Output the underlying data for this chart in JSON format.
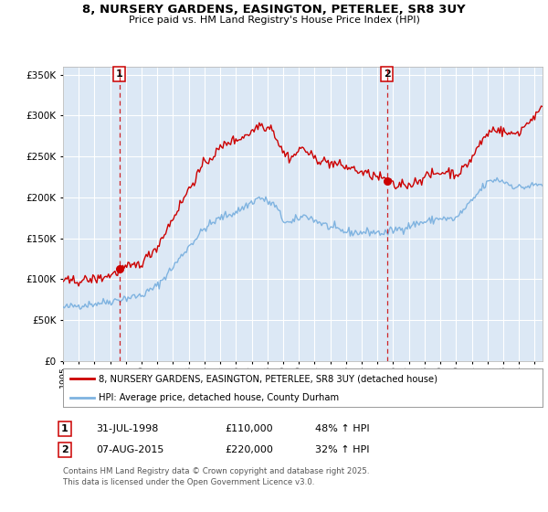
{
  "title_line1": "8, NURSERY GARDENS, EASINGTON, PETERLEE, SR8 3UY",
  "title_line2": "Price paid vs. HM Land Registry's House Price Index (HPI)",
  "background_color": "#ffffff",
  "plot_bg_color": "#dce8f5",
  "grid_color": "#ffffff",
  "hpi_color": "#7fb3e0",
  "price_color": "#cc0000",
  "vline_color": "#cc0000",
  "sale1_year": 1998.58,
  "sale2_year": 2015.6,
  "xmin": 1995,
  "xmax": 2025.5,
  "ymin": 0,
  "ymax": 360000,
  "yticks": [
    0,
    50000,
    100000,
    150000,
    200000,
    250000,
    300000,
    350000
  ],
  "legend_label1": "8, NURSERY GARDENS, EASINGTON, PETERLEE, SR8 3UY (detached house)",
  "legend_label2": "HPI: Average price, detached house, County Durham",
  "annotation1_label": "1",
  "annotation2_label": "2",
  "footnote": "Contains HM Land Registry data © Crown copyright and database right 2025.\nThis data is licensed under the Open Government Licence v3.0.",
  "table_row1": [
    "1",
    "31-JUL-1998",
    "£110,000",
    "48% ↑ HPI"
  ],
  "table_row2": [
    "2",
    "07-AUG-2015",
    "£220,000",
    "32% ↑ HPI"
  ],
  "hpi_base": [
    [
      1995.0,
      65000
    ],
    [
      1996.0,
      68000
    ],
    [
      1997.0,
      70000
    ],
    [
      1998.0,
      73000
    ],
    [
      1999.0,
      77000
    ],
    [
      2000.0,
      80000
    ],
    [
      2001.0,
      92000
    ],
    [
      2002.0,
      115000
    ],
    [
      2003.0,
      140000
    ],
    [
      2004.0,
      162000
    ],
    [
      2005.0,
      175000
    ],
    [
      2006.0,
      182000
    ],
    [
      2007.5,
      200000
    ],
    [
      2008.5,
      190000
    ],
    [
      2009.0,
      172000
    ],
    [
      2009.5,
      168000
    ],
    [
      2010.0,
      175000
    ],
    [
      2010.5,
      178000
    ],
    [
      2011.0,
      172000
    ],
    [
      2011.5,
      168000
    ],
    [
      2012.0,
      163000
    ],
    [
      2012.5,
      160000
    ],
    [
      2013.0,
      158000
    ],
    [
      2013.5,
      157000
    ],
    [
      2014.0,
      157000
    ],
    [
      2014.5,
      158000
    ],
    [
      2015.0,
      157000
    ],
    [
      2015.5,
      156000
    ],
    [
      2016.0,
      160000
    ],
    [
      2016.5,
      162000
    ],
    [
      2017.0,
      165000
    ],
    [
      2017.5,
      168000
    ],
    [
      2018.0,
      170000
    ],
    [
      2018.5,
      172000
    ],
    [
      2019.0,
      175000
    ],
    [
      2019.5,
      173000
    ],
    [
      2020.0,
      174000
    ],
    [
      2020.5,
      185000
    ],
    [
      2021.0,
      195000
    ],
    [
      2021.5,
      208000
    ],
    [
      2022.0,
      218000
    ],
    [
      2022.5,
      222000
    ],
    [
      2023.0,
      220000
    ],
    [
      2023.5,
      215000
    ],
    [
      2024.0,
      212000
    ],
    [
      2024.5,
      213000
    ],
    [
      2025.0,
      215000
    ],
    [
      2025.5,
      216000
    ]
  ],
  "price_base": [
    [
      1995.0,
      97000
    ],
    [
      1996.0,
      98000
    ],
    [
      1997.0,
      100000
    ],
    [
      1997.5,
      102000
    ],
    [
      1998.0,
      105000
    ],
    [
      1998.58,
      110000
    ],
    [
      1999.0,
      114000
    ],
    [
      1999.5,
      116000
    ],
    [
      2000.0,
      120000
    ],
    [
      2001.0,
      140000
    ],
    [
      2002.0,
      175000
    ],
    [
      2003.0,
      210000
    ],
    [
      2004.0,
      242000
    ],
    [
      2004.5,
      250000
    ],
    [
      2005.0,
      260000
    ],
    [
      2005.5,
      268000
    ],
    [
      2006.0,
      270000
    ],
    [
      2006.5,
      275000
    ],
    [
      2007.0,
      280000
    ],
    [
      2007.5,
      290000
    ],
    [
      2008.0,
      285000
    ],
    [
      2008.3,
      287000
    ],
    [
      2008.5,
      275000
    ],
    [
      2009.0,
      255000
    ],
    [
      2009.5,
      248000
    ],
    [
      2010.0,
      257000
    ],
    [
      2010.3,
      262000
    ],
    [
      2010.5,
      255000
    ],
    [
      2011.0,
      248000
    ],
    [
      2011.5,
      245000
    ],
    [
      2012.0,
      242000
    ],
    [
      2012.5,
      240000
    ],
    [
      2013.0,
      237000
    ],
    [
      2013.5,
      235000
    ],
    [
      2014.0,
      230000
    ],
    [
      2014.5,
      228000
    ],
    [
      2015.0,
      225000
    ],
    [
      2015.5,
      222000
    ],
    [
      2015.6,
      220000
    ],
    [
      2016.0,
      215000
    ],
    [
      2016.3,
      212000
    ],
    [
      2016.5,
      218000
    ],
    [
      2017.0,
      215000
    ],
    [
      2017.5,
      220000
    ],
    [
      2018.0,
      225000
    ],
    [
      2018.5,
      228000
    ],
    [
      2019.0,
      230000
    ],
    [
      2019.5,
      232000
    ],
    [
      2020.0,
      228000
    ],
    [
      2020.5,
      235000
    ],
    [
      2021.0,
      248000
    ],
    [
      2021.5,
      265000
    ],
    [
      2022.0,
      278000
    ],
    [
      2022.5,
      285000
    ],
    [
      2023.0,
      280000
    ],
    [
      2023.5,
      277000
    ],
    [
      2024.0,
      280000
    ],
    [
      2024.5,
      290000
    ],
    [
      2025.0,
      300000
    ],
    [
      2025.5,
      308000
    ]
  ]
}
